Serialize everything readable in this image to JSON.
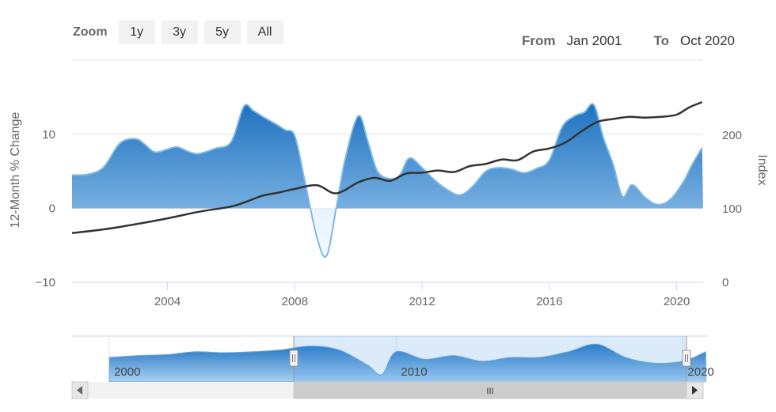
{
  "toolbar": {
    "zoom_label": "Zoom",
    "buttons": [
      "1y",
      "3y",
      "5y",
      "All"
    ],
    "from_label": "From",
    "from_value": "Jan 2001",
    "to_label": "To",
    "to_value": "Oct 2020"
  },
  "navigator": {
    "tick_labels": [
      "2000",
      "2010",
      "2020"
    ],
    "scroll_grip": "III"
  },
  "colors": {
    "area_dark": "#1f72bf",
    "area_light": "#7fb8e8",
    "line": "#333333",
    "axis": "#ccd6eb",
    "grid": "#e6e6e6",
    "navigator_mask": "#d3e6f8"
  },
  "chart_data": {
    "type": "area",
    "title": "",
    "xlabel": "",
    "ylabel": "12-Month % Change",
    "y2label": "Index",
    "x_range": [
      "2001-01",
      "2020-10"
    ],
    "x_ticks": [
      "2004",
      "2008",
      "2012",
      "2016",
      "2020"
    ],
    "y_ticks": [
      -10,
      0,
      10
    ],
    "y_range": [
      -10,
      18
    ],
    "y2_ticks": [
      0,
      100,
      200
    ],
    "y2_range": [
      0,
      280
    ],
    "grid": true,
    "series": [
      {
        "axis": "left",
        "kind": "area",
        "x": [
          2001.0,
          2001.5,
          2002.0,
          2002.5,
          2003.0,
          2003.3,
          2003.6,
          2004.0,
          2004.3,
          2004.7,
          2005.0,
          2005.5,
          2006.0,
          2006.4,
          2006.7,
          2007.0,
          2007.4,
          2007.7,
          2008.0,
          2008.3,
          2008.7,
          2009.0,
          2009.3,
          2009.6,
          2010.0,
          2010.3,
          2010.6,
          2011.0,
          2011.3,
          2011.6,
          2012.0,
          2012.4,
          2012.8,
          2013.2,
          2013.6,
          2014.0,
          2014.4,
          2014.8,
          2015.2,
          2015.6,
          2016.0,
          2016.4,
          2016.8,
          2017.1,
          2017.4,
          2017.7,
          2018.0,
          2018.3,
          2018.6,
          2019.0,
          2019.4,
          2019.8,
          2020.2,
          2020.5,
          2020.8
        ],
        "values": [
          4.5,
          4.6,
          5.6,
          8.8,
          9.4,
          8.6,
          7.6,
          8.0,
          8.3,
          7.6,
          7.4,
          8.1,
          9.0,
          13.8,
          13.2,
          12.4,
          11.4,
          10.6,
          9.8,
          4.0,
          -4.0,
          -6.4,
          0.0,
          7.0,
          12.5,
          9.0,
          5.0,
          4.0,
          4.5,
          6.8,
          5.5,
          3.8,
          2.5,
          1.8,
          3.0,
          5.0,
          5.5,
          5.3,
          4.8,
          5.4,
          6.5,
          11.0,
          12.5,
          13.0,
          14.0,
          9.5,
          6.0,
          1.6,
          3.2,
          1.5,
          0.5,
          1.2,
          3.5,
          6.0,
          8.2
        ]
      },
      {
        "axis": "right",
        "kind": "line",
        "name": "Index",
        "x": [
          2001.0,
          2002.0,
          2003.0,
          2004.0,
          2005.0,
          2006.0,
          2006.5,
          2007.0,
          2007.5,
          2008.0,
          2008.7,
          2009.3,
          2010.0,
          2010.5,
          2011.0,
          2011.5,
          2012.0,
          2012.5,
          2013.0,
          2013.5,
          2014.0,
          2014.5,
          2015.0,
          2015.5,
          2016.0,
          2016.5,
          2017.0,
          2017.5,
          2018.0,
          2018.5,
          2019.0,
          2019.5,
          2020.0,
          2020.4,
          2020.8
        ],
        "values": [
          67,
          72,
          79,
          87,
          96,
          103,
          110,
          118,
          122,
          127,
          132,
          121,
          136,
          142,
          138,
          148,
          149,
          152,
          150,
          158,
          161,
          167,
          166,
          178,
          182,
          190,
          205,
          218,
          222,
          225,
          224,
          225,
          228,
          238,
          245
        ]
      }
    ],
    "navigator_series": {
      "x": [
        2000,
        2001,
        2002,
        2003,
        2004,
        2005,
        2006,
        2007,
        2008,
        2009,
        2009.5,
        2010,
        2011,
        2012,
        2013,
        2014,
        2015,
        2016,
        2017,
        2018,
        2019,
        2020,
        2020.8
      ],
      "values": [
        5,
        6,
        6.5,
        8,
        7.5,
        8,
        9,
        11,
        9,
        1,
        -4,
        8,
        4,
        6,
        3,
        5,
        5,
        8,
        12,
        5,
        2,
        3,
        8
      ]
    }
  }
}
